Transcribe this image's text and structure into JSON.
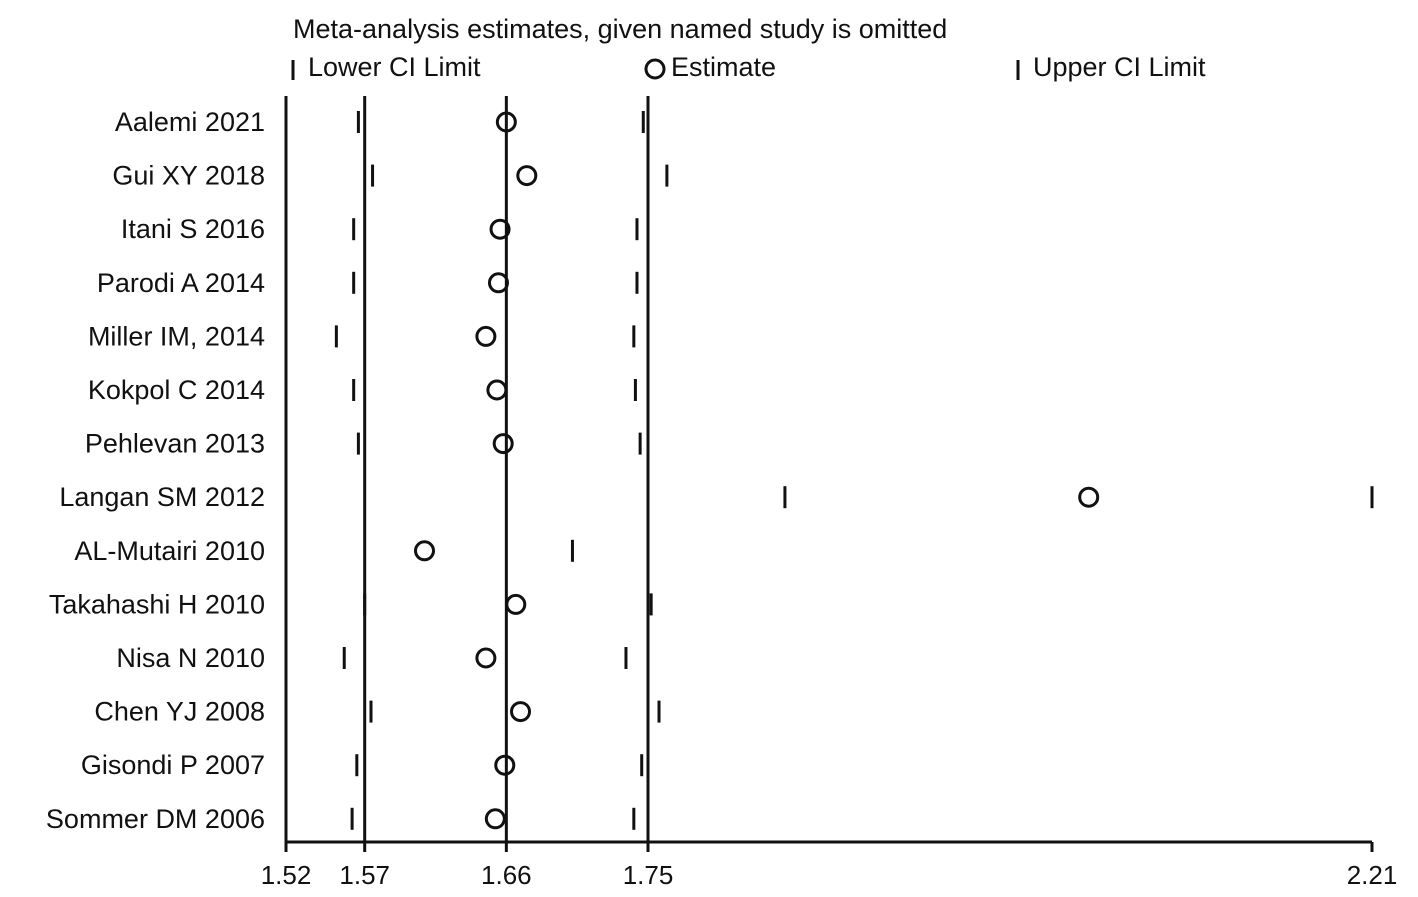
{
  "chart_data": {
    "type": "scatter",
    "title": "Meta-analysis estimates, given named study is omitted",
    "legend": {
      "placement": "top",
      "items": [
        {
          "marker": "tick",
          "label": "Lower CI Limit"
        },
        {
          "marker": "circle",
          "label": "Estimate"
        },
        {
          "marker": "tick",
          "label": "Upper CI Limit"
        }
      ]
    },
    "xlim": [
      1.52,
      2.21
    ],
    "xticks": [
      {
        "value": 1.52,
        "label": "1.52"
      },
      {
        "value": 1.57,
        "label": "1.57"
      },
      {
        "value": 1.66,
        "label": "1.66"
      },
      {
        "value": 1.75,
        "label": "1.75"
      },
      {
        "value": 2.21,
        "label": "2.21"
      }
    ],
    "reference_lines": [
      1.57,
      1.66,
      1.75
    ],
    "studies": [
      {
        "name": "Aalemi 2021",
        "lower": 1.566,
        "estimate": 1.66,
        "upper": 1.747
      },
      {
        "name": "Gui XY 2018",
        "lower": 1.575,
        "estimate": 1.673,
        "upper": 1.762
      },
      {
        "name": "Itani S 2016",
        "lower": 1.563,
        "estimate": 1.656,
        "upper": 1.743
      },
      {
        "name": "Parodi A 2014",
        "lower": 1.563,
        "estimate": 1.655,
        "upper": 1.743
      },
      {
        "name": "Miller IM, 2014",
        "lower": 1.552,
        "estimate": 1.647,
        "upper": 1.741
      },
      {
        "name": "Kokpol C 2014",
        "lower": 1.563,
        "estimate": 1.654,
        "upper": 1.742
      },
      {
        "name": "Pehlevan 2013",
        "lower": 1.566,
        "estimate": 1.658,
        "upper": 1.745
      },
      {
        "name": "Langan SM 2012",
        "lower": 1.837,
        "estimate": 2.03,
        "upper": 2.21
      },
      {
        "name": "AL-Mutairi 2010",
        "lower": 1.52,
        "estimate": 1.608,
        "upper": 1.702
      },
      {
        "name": "Takahashi H 2010",
        "lower": 1.57,
        "estimate": 1.666,
        "upper": 1.752
      },
      {
        "name": "Nisa N 2010",
        "lower": 1.557,
        "estimate": 1.647,
        "upper": 1.736
      },
      {
        "name": "Chen YJ 2008",
        "lower": 1.574,
        "estimate": 1.669,
        "upper": 1.757
      },
      {
        "name": "Gisondi P 2007",
        "lower": 1.565,
        "estimate": 1.659,
        "upper": 1.746
      },
      {
        "name": "Sommer DM 2006",
        "lower": 1.562,
        "estimate": 1.653,
        "upper": 1.741
      }
    ]
  }
}
